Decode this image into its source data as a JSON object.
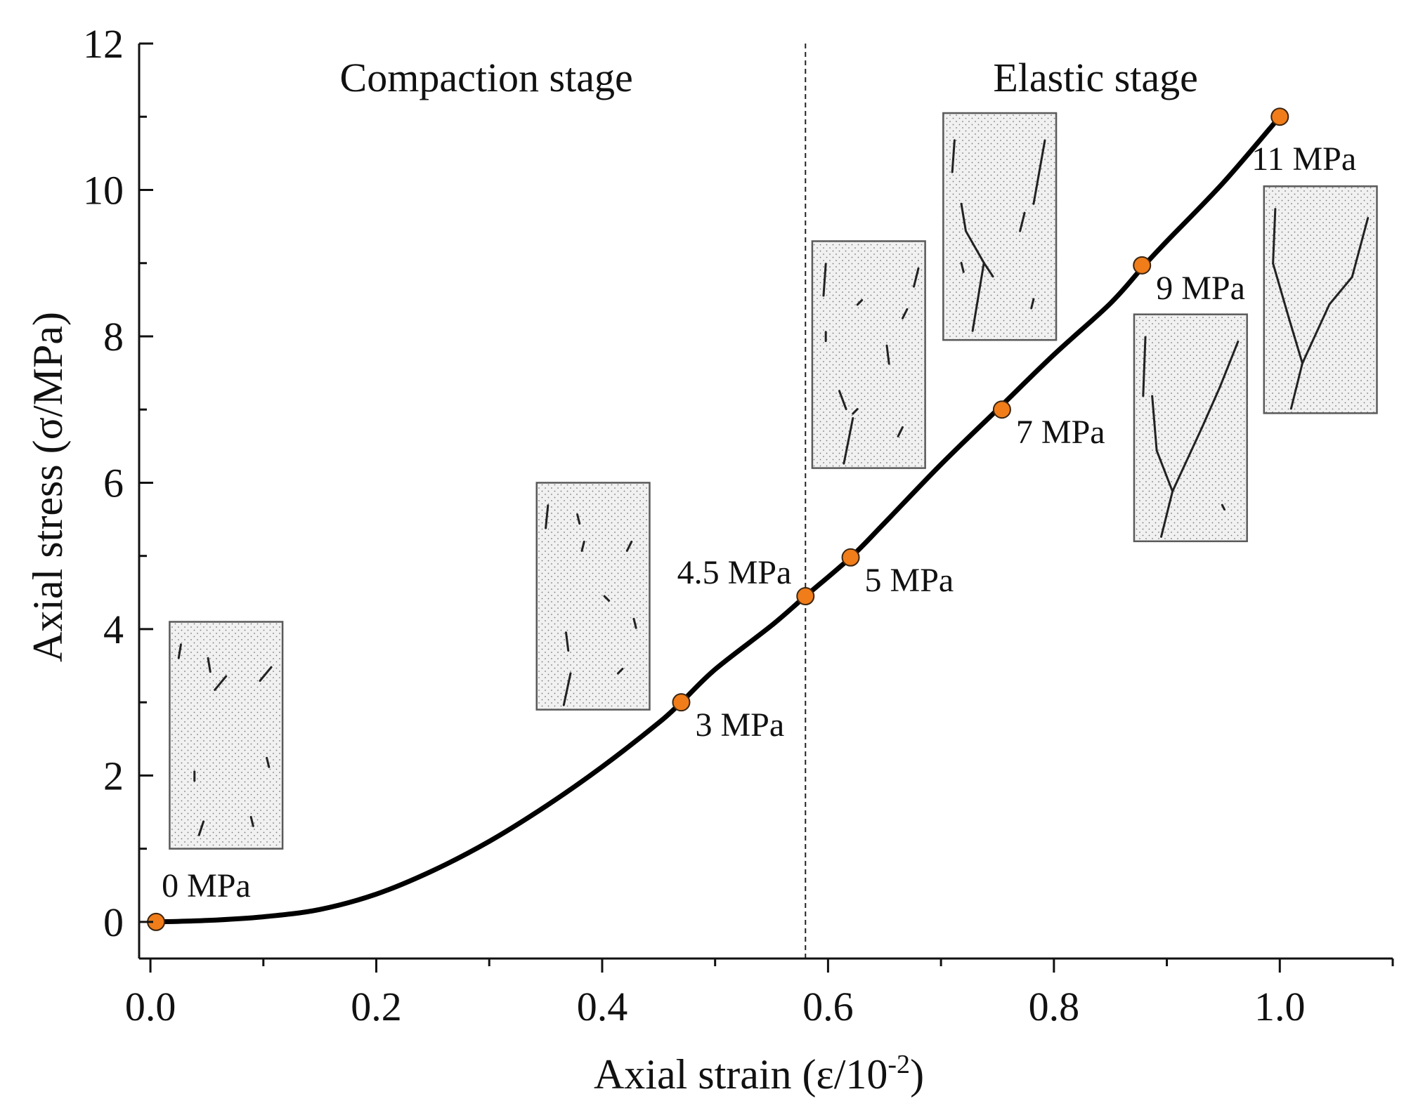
{
  "chart_data": {
    "type": "line",
    "title": "",
    "xlabel": "Axial strain (ε/10",
    "xlabel_sup": "-2",
    "xlabel_end": ")",
    "ylabel": "Axial stress (σ/MPa)",
    "xlim": [
      -0.01,
      1.1
    ],
    "ylim": [
      -0.5,
      12
    ],
    "x_ticks": [
      0.0,
      0.2,
      0.4,
      0.6,
      0.8,
      1.0
    ],
    "x_tick_labels": [
      "0.0",
      "0.2",
      "0.4",
      "0.6",
      "0.8",
      "1.0"
    ],
    "x_minor_ticks": [
      0.1,
      0.3,
      0.5,
      0.7,
      0.9,
      1.1
    ],
    "y_ticks": [
      0,
      2,
      4,
      6,
      8,
      10,
      12
    ],
    "y_tick_labels": [
      "0",
      "2",
      "4",
      "6",
      "8",
      "10",
      "12"
    ],
    "y_minor_ticks": [
      1,
      3,
      5,
      7,
      9,
      11
    ],
    "grid": false,
    "stage_divider_x": 0.58,
    "stages": [
      {
        "name": "compaction",
        "label": "Compaction stage"
      },
      {
        "name": "elastic",
        "label": "Elastic stage"
      }
    ],
    "curve": {
      "x": [
        0.005,
        0.05,
        0.1,
        0.15,
        0.2,
        0.25,
        0.3,
        0.35,
        0.4,
        0.45,
        0.47,
        0.5,
        0.55,
        0.58,
        0.62,
        0.65,
        0.7,
        0.75,
        0.8,
        0.85,
        0.88,
        0.9,
        0.95,
        1.0
      ],
      "y": [
        0.0,
        0.02,
        0.07,
        0.17,
        0.38,
        0.7,
        1.1,
        1.58,
        2.12,
        2.72,
        3.0,
        3.45,
        4.05,
        4.45,
        4.98,
        5.45,
        6.25,
        7.0,
        7.75,
        8.45,
        8.97,
        9.3,
        10.1,
        11.0
      ]
    },
    "points": [
      {
        "x": 0.005,
        "y": 0,
        "label": "0 MPa",
        "label_pos": "above-right"
      },
      {
        "x": 0.47,
        "y": 3,
        "label": "3 MPa",
        "label_pos": "below-right"
      },
      {
        "x": 0.58,
        "y": 4.45,
        "label": "4.5 MPa",
        "label_pos": "above-left"
      },
      {
        "x": 0.62,
        "y": 4.98,
        "label": "5 MPa",
        "label_pos": "below-right"
      },
      {
        "x": 0.754,
        "y": 7.0,
        "label": "7 MPa",
        "label_pos": "below-right"
      },
      {
        "x": 0.878,
        "y": 8.97,
        "label": "9 MPa",
        "label_pos": "below-right"
      },
      {
        "x": 1.0,
        "y": 11.0,
        "label": "11 MPa",
        "label_pos": "below"
      }
    ],
    "specimens": [
      {
        "name": "specimen-0mpa",
        "stress": "0 MPa",
        "x_range": [
          0.017,
          0.117
        ],
        "y_range": [
          1.0,
          4.1
        ]
      },
      {
        "name": "specimen-3mpa",
        "stress": "3 MPa",
        "x_range": [
          0.342,
          0.442
        ],
        "y_range": [
          2.9,
          6.0
        ]
      },
      {
        "name": "specimen-5mpa",
        "stress": "5 MPa",
        "x_range": [
          0.586,
          0.686
        ],
        "y_range": [
          6.2,
          9.3
        ]
      },
      {
        "name": "specimen-7mpa",
        "stress": "7 MPa",
        "x_range": [
          0.702,
          0.802
        ],
        "y_range": [
          7.95,
          11.05
        ]
      },
      {
        "name": "specimen-9mpa",
        "stress": "9 MPa",
        "x_range": [
          0.871,
          0.971
        ],
        "y_range": [
          5.2,
          8.3
        ]
      },
      {
        "name": "specimen-11mpa",
        "stress": "11 MPa",
        "x_range": [
          0.986,
          1.086
        ],
        "y_range": [
          6.95,
          10.05
        ]
      }
    ],
    "colors": {
      "curve": "#000000",
      "marker_fill": "#f07d1a",
      "marker_edge": "#3a2410",
      "axis": "#111111",
      "specimen_fill": "#f1f1f1",
      "specimen_edge": "#5a5a5a",
      "specimen_dots": "#7a7a7a",
      "crack": "#222222"
    }
  }
}
